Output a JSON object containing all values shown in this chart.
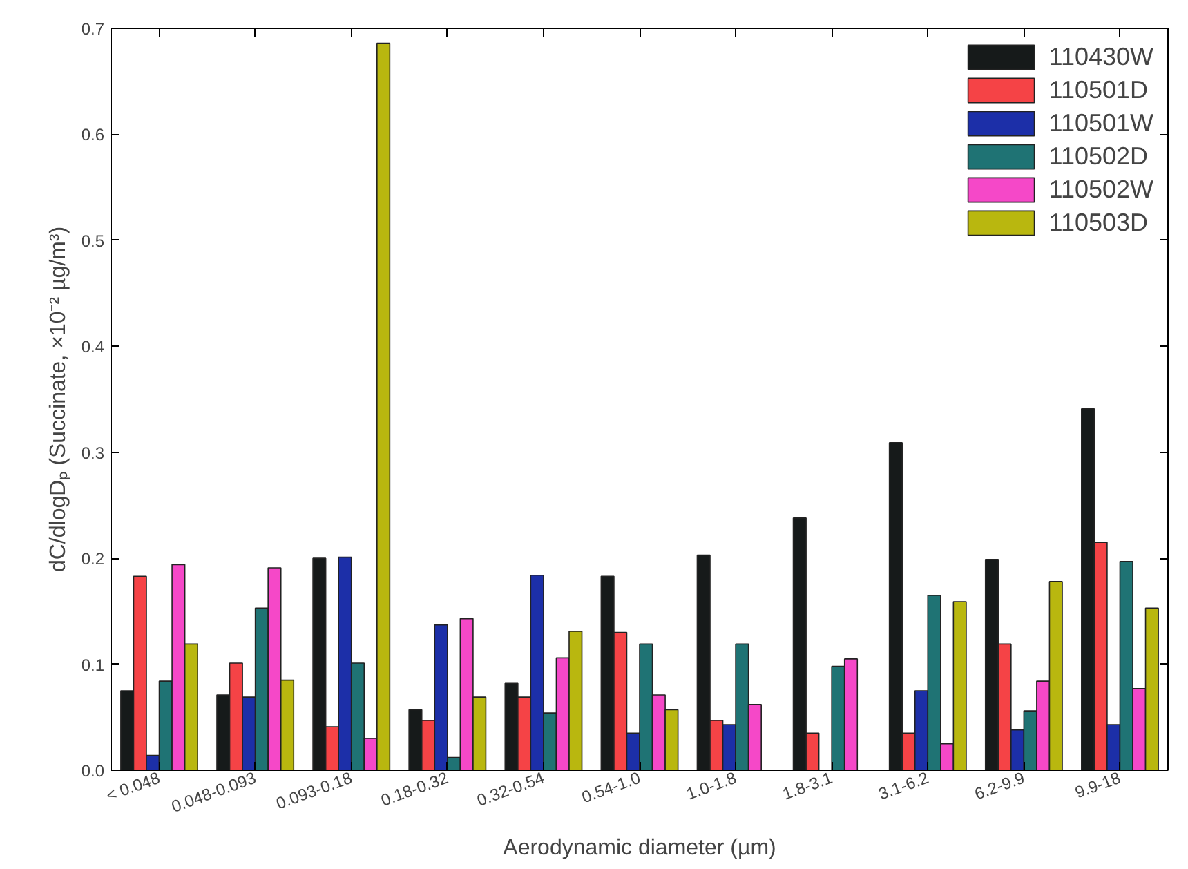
{
  "chart_data": {
    "type": "bar",
    "xlabel": "Aerodynamic diameter (µm)",
    "ylabel": "dC/dlogDₚ (Succinate, ×10⁻² µg/m³)",
    "categories": [
      "< 0.048",
      "0.048-0.093",
      "0.093-0.18",
      "0.18-0.32",
      "0.32-0.54",
      "0.54-1.0",
      "1.0-1.8",
      "1.8-3.1",
      "3.1-6.2",
      "6.2-9.9",
      "9.9-18"
    ],
    "series": [
      {
        "name": "110430W",
        "color": "#161a1a",
        "values": [
          0.075,
          0.071,
          0.2,
          0.057,
          0.082,
          0.183,
          0.203,
          0.238,
          0.309,
          0.199,
          0.341
        ]
      },
      {
        "name": "110501D",
        "color": "#f54346",
        "values": [
          0.183,
          0.101,
          0.041,
          0.047,
          0.069,
          0.13,
          0.047,
          0.035,
          0.035,
          0.119,
          0.215
        ]
      },
      {
        "name": "110501W",
        "color": "#1c2fa8",
        "values": [
          0.014,
          0.069,
          0.201,
          0.137,
          0.184,
          0.035,
          0.043,
          null,
          0.075,
          0.038,
          0.043
        ]
      },
      {
        "name": "110502D",
        "color": "#1f7374",
        "values": [
          0.084,
          0.153,
          0.101,
          0.012,
          0.054,
          0.119,
          0.119,
          0.098,
          0.165,
          0.056,
          0.197
        ]
      },
      {
        "name": "110502W",
        "color": "#f548c8",
        "values": [
          0.194,
          0.191,
          0.03,
          0.143,
          0.106,
          0.071,
          0.062,
          0.105,
          0.025,
          0.084,
          0.077
        ]
      },
      {
        "name": "110503D",
        "color": "#b9b70f",
        "values": [
          0.119,
          0.085,
          0.686,
          0.069,
          0.131,
          0.057,
          null,
          null,
          0.159,
          0.178,
          0.153
        ]
      }
    ],
    "ylim": [
      0,
      0.7
    ],
    "yticks": [
      {
        "value": 0,
        "label": "0.0"
      },
      0.1,
      0.2,
      0.3,
      0.4,
      0.5,
      0.6,
      0.7
    ],
    "grid": false,
    "legend": "top right"
  }
}
